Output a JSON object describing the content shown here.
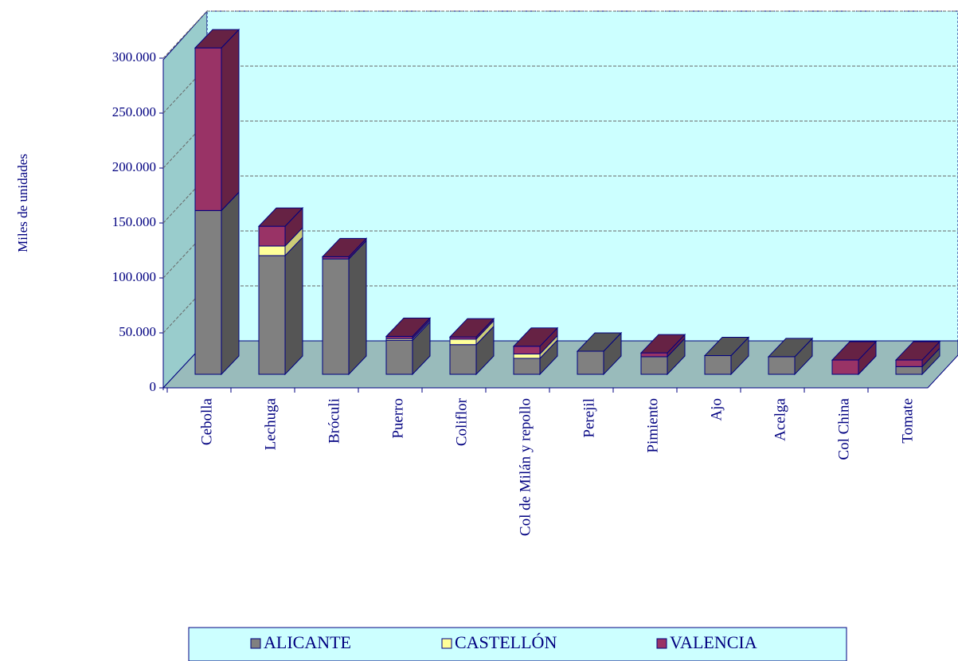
{
  "chart_data": {
    "type": "bar3d_stacked",
    "y_label": "Miles de unidades",
    "categories": [
      "Cebolla",
      "Lechuga",
      "Bróculi",
      "Puerro",
      "Coliflor",
      "Col de Milán y repollo",
      "Perejil",
      "Pimiento",
      "Ajo",
      "Acelga",
      "Col China",
      "Tomate"
    ],
    "series": [
      {
        "name": "ALICANTE",
        "color": "#808080",
        "values": [
          149000,
          108000,
          105000,
          31000,
          27000,
          14500,
          21000,
          16000,
          17000,
          16000,
          0,
          7000
        ]
      },
      {
        "name": "CASTELLÓN",
        "color": "#ffff99",
        "values": [
          0,
          8700,
          0,
          1500,
          5000,
          4000,
          0,
          0,
          0,
          0,
          0,
          0
        ]
      },
      {
        "name": "VALENCIA",
        "color": "#993366",
        "values": [
          148000,
          18000,
          2000,
          2000,
          2000,
          7000,
          0,
          3500,
          0,
          0,
          13000,
          6000
        ]
      }
    ],
    "ylim": [
      0,
      300000
    ],
    "yticks": [
      0,
      {
        "value": 50000,
        "label": "50.000"
      },
      {
        "value": 100000,
        "label": "100.000"
      },
      {
        "value": 150000,
        "label": "150.000"
      },
      {
        "value": 200000,
        "label": "200.000"
      },
      {
        "value": 250000,
        "label": "250.000"
      },
      {
        "value": 300000,
        "label": "300.000"
      }
    ],
    "grid": true
  }
}
